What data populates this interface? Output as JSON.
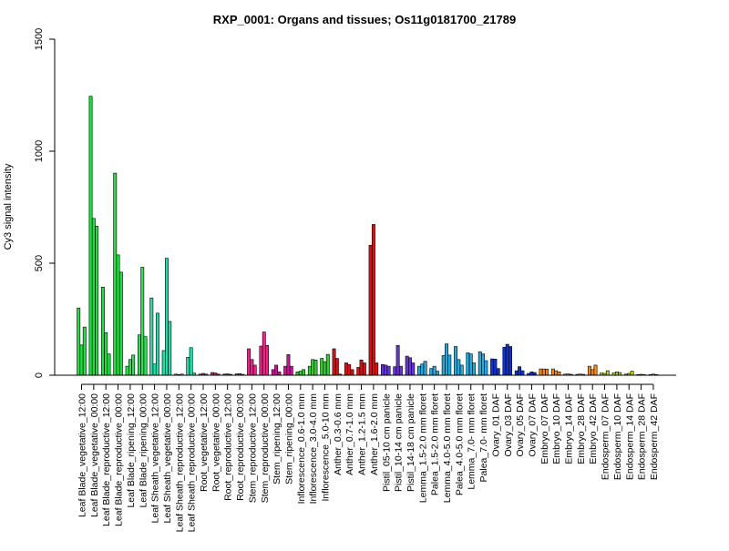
{
  "chart_data": {
    "type": "bar",
    "title": "RXP_0001: Organs and tissues; Os11g0181700_21789",
    "xlabel": "",
    "ylabel": "Cy3 signal intensity",
    "ylim": [
      0,
      1500
    ],
    "yticks": [
      0,
      500,
      1000,
      1500
    ],
    "grid": false,
    "legend": "none",
    "groups": [
      {
        "label": "Leaf Blade_vegetative_12:00",
        "color": "#22dd44",
        "values": [
          300,
          135,
          215
        ]
      },
      {
        "label": "Leaf Blade_vegetative_00:00",
        "color": "#22dd44",
        "values": [
          1245,
          700,
          665
        ]
      },
      {
        "label": "Leaf Blade_reproductive_12:00",
        "color": "#22dd44",
        "values": [
          393,
          190,
          95
        ]
      },
      {
        "label": "Leaf Blade_reproductive_00:00",
        "color": "#22dd44",
        "values": [
          902,
          537,
          460
        ]
      },
      {
        "label": "Leaf Blade_ripening_12:00",
        "color": "#33dd55",
        "values": [
          40,
          70,
          90
        ]
      },
      {
        "label": "Leaf Blade_ripening_00:00",
        "color": "#33dd55",
        "values": [
          180,
          482,
          172
        ]
      },
      {
        "label": "Leaf Sheath_vegetative_12:00",
        "color": "#22ddaa",
        "values": [
          345,
          50,
          277
        ]
      },
      {
        "label": "Leaf Sheath_vegetative_00:00",
        "color": "#22ddaa",
        "values": [
          110,
          522,
          240
        ]
      },
      {
        "label": "Leaf Sheath_reproductive_12:00",
        "color": "#22ddaa",
        "values": [
          5,
          3,
          5
        ]
      },
      {
        "label": "Leaf Sheath_reproductive_00:00",
        "color": "#22ddaa",
        "values": [
          80,
          123,
          10
        ]
      },
      {
        "label": "Root_vegetative_12:00",
        "color": "#cc2288",
        "values": [
          5,
          8,
          5
        ]
      },
      {
        "label": "Root_vegetative_00:00",
        "color": "#cc2288",
        "values": [
          12,
          10,
          5
        ]
      },
      {
        "label": "Root_reproductive_12:00",
        "color": "#cc2288",
        "values": [
          5,
          6,
          4
        ]
      },
      {
        "label": "Root_reproductive_00:00",
        "color": "#cc2288",
        "values": [
          6,
          7,
          4
        ]
      },
      {
        "label": "Stem_reproductive_12:00",
        "color": "#ee2288",
        "values": [
          118,
          70,
          45
        ]
      },
      {
        "label": "Stem_reproductive_00:00",
        "color": "#ee2288",
        "values": [
          130,
          193,
          133
        ]
      },
      {
        "label": "Stem_ripening_12:00",
        "color": "#cc1199",
        "values": [
          25,
          45,
          15
        ]
      },
      {
        "label": "Stem_ripening_00:00",
        "color": "#cc1199",
        "values": [
          40,
          92,
          40
        ]
      },
      {
        "label": "Inflorescence_0.6-1.0 mm",
        "color": "#33cc33",
        "values": [
          15,
          18,
          25
        ]
      },
      {
        "label": "Inflorescence_3.0-4.0 mm",
        "color": "#33cc33",
        "values": [
          40,
          70,
          68
        ]
      },
      {
        "label": "Inflorescence_5.0-10 mm",
        "color": "#33cc33",
        "values": [
          75,
          60,
          93
        ]
      },
      {
        "label": "Anther_0.3-0.6 mm",
        "color": "#dd1111",
        "values": [
          118,
          75,
          5
        ]
      },
      {
        "label": "Anther_0.7-1.0 mm",
        "color": "#dd1111",
        "values": [
          55,
          48,
          25
        ]
      },
      {
        "label": "Anther_1.2-1.5 mm",
        "color": "#dd1111",
        "values": [
          35,
          68,
          55
        ]
      },
      {
        "label": "Anther_1.6-2.0 mm",
        "color": "#dd1111",
        "values": [
          580,
          673,
          55
        ]
      },
      {
        "label": "Pistil_05-10 cm panicle",
        "color": "#6633dd",
        "values": [
          48,
          45,
          40
        ]
      },
      {
        "label": "Pistil_10-14 cm panicle",
        "color": "#6633dd",
        "values": [
          38,
          133,
          40
        ]
      },
      {
        "label": "Pistil_14-18 cm panicle",
        "color": "#6633dd",
        "values": [
          85,
          78,
          55
        ]
      },
      {
        "label": "Lemma_1.5-2.0 mm floret",
        "color": "#22aadd",
        "values": [
          40,
          50,
          62
        ]
      },
      {
        "label": "Palea_1.5-2.0 mm floret",
        "color": "#22aadd",
        "values": [
          30,
          40,
          18
        ]
      },
      {
        "label": "Lemma_4.0-5.0 mm floret",
        "color": "#22aadd",
        "values": [
          88,
          140,
          90
        ]
      },
      {
        "label": "Palea_4.0-5.0 mm floret",
        "color": "#22aadd",
        "values": [
          128,
          70,
          45
        ]
      },
      {
        "label": "Lemma_7.0- mm floret",
        "color": "#22aadd",
        "values": [
          100,
          95,
          55
        ]
      },
      {
        "label": "Palea_7.0- mm floret",
        "color": "#22aadd",
        "values": [
          105,
          95,
          65
        ]
      },
      {
        "label": "Ovary_01 DAF",
        "color": "#1133cc",
        "values": [
          73,
          72,
          30
        ]
      },
      {
        "label": "Ovary_03 DAF",
        "color": "#1133cc",
        "values": [
          125,
          138,
          128
        ]
      },
      {
        "label": "Ovary_05 DAF",
        "color": "#1133cc",
        "values": [
          20,
          38,
          20
        ]
      },
      {
        "label": "Ovary_07 DAF",
        "color": "#1133cc",
        "values": [
          8,
          15,
          12
        ]
      },
      {
        "label": "Embryo_07 DAF",
        "color": "#ee8822",
        "values": [
          28,
          28,
          27
        ]
      },
      {
        "label": "Embryo_10 DAF",
        "color": "#ee8822",
        "values": [
          28,
          20,
          15
        ]
      },
      {
        "label": "Embryo_14 DAF",
        "color": "#ee8822",
        "values": [
          5,
          6,
          4
        ]
      },
      {
        "label": "Embryo_28 DAF",
        "color": "#ee8822",
        "values": [
          4,
          5,
          4
        ]
      },
      {
        "label": "Embryo_42 DAF",
        "color": "#ee8822",
        "values": [
          40,
          25,
          45
        ]
      },
      {
        "label": "Endosperm_07 DAF",
        "color": "#bbcc22",
        "values": [
          10,
          8,
          20
        ]
      },
      {
        "label": "Endosperm_10 DAF",
        "color": "#bbcc22",
        "values": [
          10,
          15,
          12
        ]
      },
      {
        "label": "Endosperm_14 DAF",
        "color": "#bbcc22",
        "values": [
          5,
          8,
          18
        ]
      },
      {
        "label": "Endosperm_28 DAF",
        "color": "#9999aa",
        "values": [
          3,
          4,
          3
        ]
      },
      {
        "label": "Endosperm_42 DAF",
        "color": "#9999aa",
        "values": [
          3,
          5,
          3
        ]
      }
    ]
  }
}
